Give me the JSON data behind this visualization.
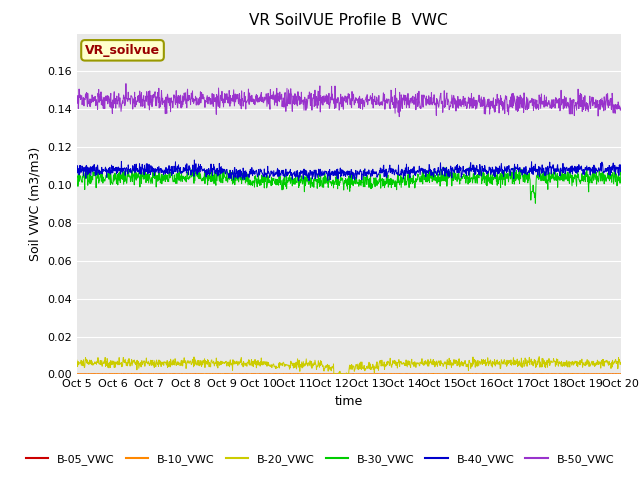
{
  "title": "VR SoilVUE Profile B  VWC",
  "xlabel": "time",
  "ylabel": "Soil VWC (m3/m3)",
  "ylim": [
    0,
    0.18
  ],
  "yticks": [
    0.0,
    0.02,
    0.04,
    0.06,
    0.08,
    0.1,
    0.12,
    0.14,
    0.16
  ],
  "n_points": 1440,
  "series": {
    "B-05_VWC": {
      "color": "#cc0000",
      "base": 0.0001,
      "noise": 0.0001
    },
    "B-10_VWC": {
      "color": "#ff8800",
      "base": 0.0003,
      "noise": 0.0001
    },
    "B-20_VWC": {
      "color": "#cccc00",
      "base": 0.006,
      "noise": 0.0015
    },
    "B-30_VWC": {
      "color": "#00cc00",
      "base": 0.104,
      "noise": 0.002
    },
    "B-40_VWC": {
      "color": "#0000cc",
      "base": 0.108,
      "noise": 0.0015
    },
    "B-50_VWC": {
      "color": "#9933cc",
      "base": 0.145,
      "noise": 0.003
    }
  },
  "xtick_labels": [
    "Oct 5",
    "Oct 6",
    "Oct 7",
    "Oct 8",
    "Oct 9",
    "Oct 10",
    "Oct 11",
    "Oct 12",
    "Oct 13",
    "Oct 14",
    "Oct 15",
    "Oct 16",
    "Oct 17",
    "Oct 18",
    "Oct 19",
    "Oct 20"
  ],
  "legend_label": "VR_soilvue",
  "legend_box_color": "#ffffcc",
  "legend_text_color": "#990000",
  "bg_color": "#e8e8e8",
  "title_fontsize": 11,
  "axis_fontsize": 9,
  "tick_fontsize": 8
}
